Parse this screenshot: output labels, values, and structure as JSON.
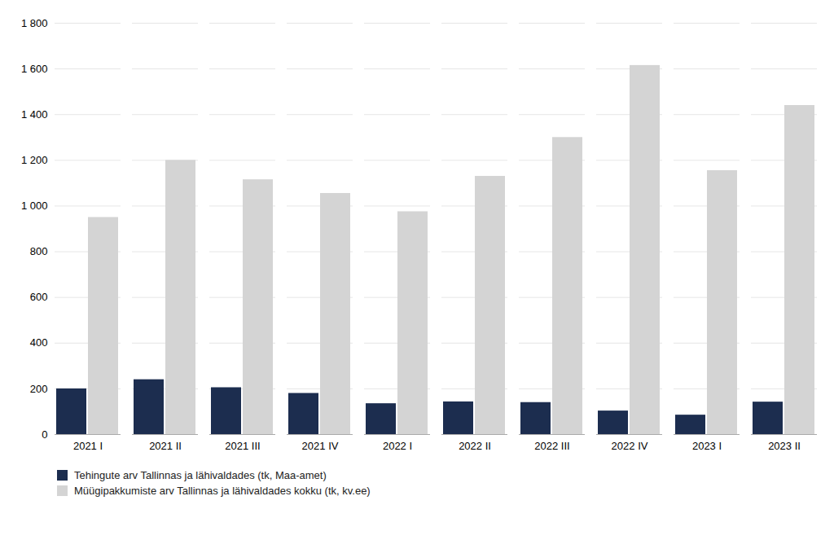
{
  "chart_data": {
    "type": "bar",
    "categories": [
      "2021 I",
      "2021 II",
      "2021 III",
      "2021 IV",
      "2022 I",
      "2022 II",
      "2022 III",
      "2022 IV",
      "2023 I",
      "2023 II"
    ],
    "series": [
      {
        "name": "Tehingute arv Tallinnas ja lähivaldades (tk, Maa-amet)",
        "color": "#1c2d4f",
        "values": [
          200,
          240,
          205,
          180,
          135,
          143,
          140,
          103,
          85,
          142
        ]
      },
      {
        "name": "Müügipakkumiste arv Tallinnas ja lähivaldades kokku (tk, kv.ee)",
        "color": "#d4d4d4",
        "values": [
          950,
          1200,
          1115,
          1055,
          975,
          1130,
          1300,
          1615,
          1155,
          1440
        ]
      }
    ],
    "ylim": [
      0,
      1800
    ],
    "yticks": [
      0,
      200,
      400,
      600,
      800,
      {
        "value": 1000,
        "label": "1 000"
      },
      {
        "value": 1200,
        "label": "1 200"
      },
      {
        "value": 1400,
        "label": "1 400"
      },
      {
        "value": 1600,
        "label": "1 600"
      },
      {
        "value": 1800,
        "label": "1 800"
      }
    ],
    "grid": true,
    "legend": "bottom"
  }
}
